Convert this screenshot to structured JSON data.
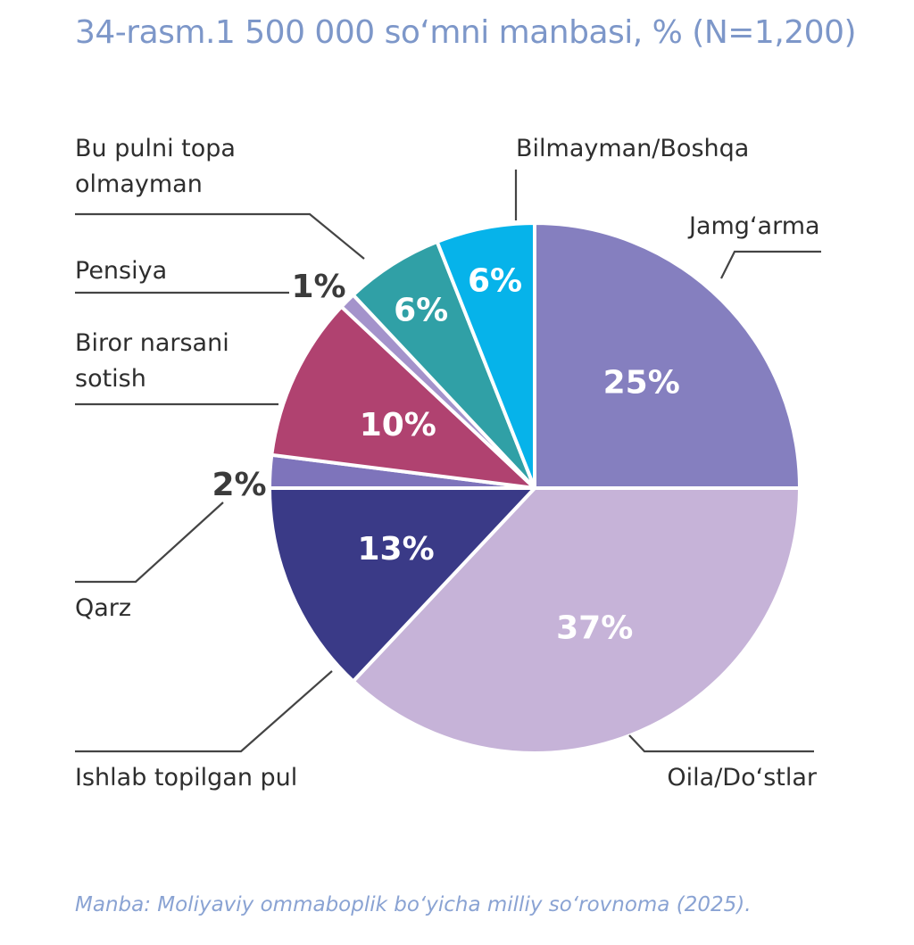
{
  "chart_data": {
    "type": "pie",
    "title": "34-rasm.1 500 000 so‘mni manbasi, % (N=1,200)",
    "source": "Manba: Moliyaviy ommaboplik bo‘yicha milliy so‘rovnoma (2025).",
    "unit": "%",
    "slices": [
      {
        "key": "jamgarma",
        "label": "Jamg‘arma",
        "value": 25,
        "value_label": "25%",
        "color": "#857fbf"
      },
      {
        "key": "oila",
        "label": "Oila/Do‘stlar",
        "value": 37,
        "value_label": "37%",
        "color": "#c6b3d8"
      },
      {
        "key": "ishlab",
        "label": "Ishlab topilgan pul",
        "value": 13,
        "value_label": "13%",
        "color": "#3a3a87"
      },
      {
        "key": "qarz",
        "label": "Qarz",
        "value": 2,
        "value_label": "2%",
        "color": "#7e74bb"
      },
      {
        "key": "sotish",
        "label": "Biror narsani sotish",
        "value": 10,
        "value_label": "10%",
        "color": "#b04270"
      },
      {
        "key": "pensiya",
        "label": "Pensiya",
        "value": 1,
        "value_label": "1%",
        "color": "#a493cb"
      },
      {
        "key": "topa",
        "label": "Bu pulni topa olmayman",
        "value": 6,
        "value_label": "6%",
        "color": "#30a0a6"
      },
      {
        "key": "bilmayman",
        "label": "Bilmayman/Boshqa",
        "value": 6,
        "value_label": "6%",
        "color": "#06b3ea"
      }
    ]
  }
}
